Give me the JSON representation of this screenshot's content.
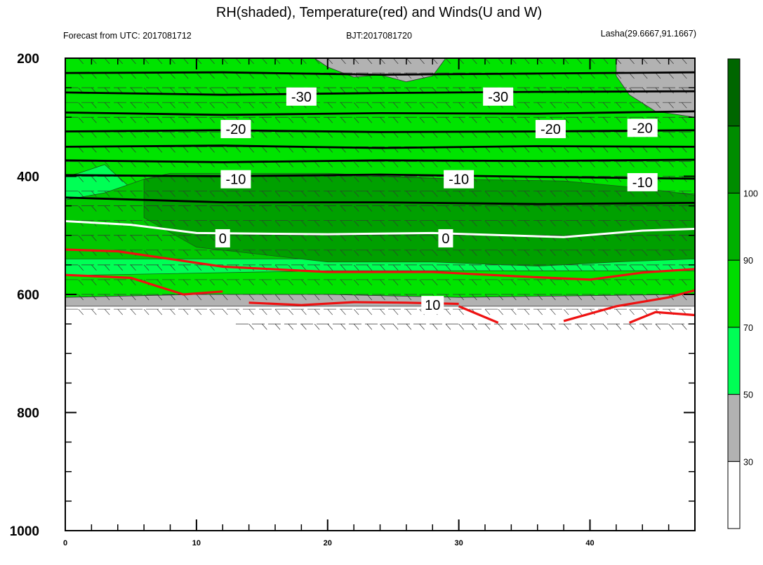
{
  "chart_data": {
    "type": "heatmap",
    "title": "RH(shaded), Temperature(red) and Winds(U and W)",
    "subtitle_left": "Forecast from UTC: 2017081712",
    "subtitle_center": "BJT:2017081720",
    "subtitle_right": "Lasha(29.6667,91.1667)",
    "xlim": [
      0,
      48
    ],
    "ylim": [
      1000,
      200
    ],
    "x_ticks": [
      "0",
      "10",
      "20",
      "30",
      "40"
    ],
    "y_ticks": [
      "200",
      "400",
      "600",
      "800",
      "1000"
    ],
    "colorbar": {
      "levels": [
        "30",
        "50",
        "70",
        "90",
        "100"
      ],
      "colors": [
        "#ffffff",
        "#b2b2b2",
        "#00ff55",
        "#00dd00",
        "#00b000",
        "#008c00",
        "#006600"
      ]
    },
    "rh_regions": [
      {
        "color": "#00e400",
        "top": [
          [
            0,
            200
          ],
          [
            48,
            200
          ]
        ],
        "bottom": [
          [
            0,
            612
          ],
          [
            5,
            612
          ],
          [
            20,
            612
          ],
          [
            35,
            615
          ],
          [
            48,
            612
          ]
        ]
      },
      {
        "color": "#00ff55",
        "top": [
          [
            0,
            400
          ],
          [
            1,
            395
          ],
          [
            3,
            380
          ],
          [
            5,
            420
          ],
          [
            7,
            470
          ],
          [
            10,
            510
          ],
          [
            48,
            510
          ]
        ],
        "bottom": [
          [
            0,
            568
          ],
          [
            20,
            560
          ],
          [
            48,
            560
          ]
        ]
      },
      {
        "color": "#00c800",
        "top": [
          [
            0,
            440
          ],
          [
            3,
            428
          ],
          [
            6,
            405
          ],
          [
            8,
            395
          ],
          [
            20,
            395
          ],
          [
            30,
            405
          ],
          [
            42,
            420
          ],
          [
            48,
            430
          ]
        ],
        "bottom": [
          [
            0,
            540
          ],
          [
            20,
            540
          ],
          [
            48,
            540
          ]
        ]
      },
      {
        "color": "#00a000",
        "top": [
          [
            6,
            405
          ],
          [
            8,
            398
          ],
          [
            20,
            397
          ],
          [
            30,
            405
          ],
          [
            38,
            408
          ],
          [
            44,
            420
          ],
          [
            48,
            432
          ]
        ],
        "bottom": [
          [
            6,
            470
          ],
          [
            10,
            520
          ],
          [
            20,
            545
          ],
          [
            28,
            545
          ],
          [
            36,
            552
          ],
          [
            42,
            545
          ],
          [
            48,
            540
          ]
        ]
      }
    ],
    "gray_regions": [
      {
        "points": [
          [
            19,
            200
          ],
          [
            29,
            200
          ],
          [
            28,
            230
          ],
          [
            26,
            240
          ],
          [
            24,
            228
          ],
          [
            22,
            232
          ],
          [
            20,
            215
          ]
        ]
      },
      {
        "points": [
          [
            42,
            200
          ],
          [
            48,
            200
          ],
          [
            48,
            300
          ],
          [
            45,
            290
          ],
          [
            43,
            262
          ],
          [
            42,
            230
          ]
        ]
      },
      {
        "points": [
          [
            0,
            605
          ],
          [
            10,
            600
          ],
          [
            20,
            600
          ],
          [
            30,
            605
          ],
          [
            40,
            602
          ],
          [
            48,
            600
          ],
          [
            48,
            620
          ],
          [
            0,
            620
          ]
        ]
      }
    ],
    "temperature_series": [
      {
        "name": "-30",
        "values": [
          [
            0,
            225
          ],
          [
            12,
            224
          ],
          [
            24,
            228
          ],
          [
            36,
            226
          ],
          [
            48,
            224
          ]
        ]
      },
      {
        "name": "-30",
        "values": [
          [
            0,
            258
          ],
          [
            12,
            262
          ],
          [
            24,
            259
          ],
          [
            36,
            257
          ],
          [
            48,
            256
          ]
        ]
      },
      {
        "name": "-20",
        "values": [
          [
            0,
            292
          ],
          [
            12,
            296
          ],
          [
            24,
            293
          ],
          [
            36,
            294
          ],
          [
            48,
            290
          ]
        ]
      },
      {
        "name": "-20",
        "values": [
          [
            0,
            324
          ],
          [
            12,
            322
          ],
          [
            24,
            325
          ],
          [
            36,
            324
          ],
          [
            48,
            322
          ]
        ]
      },
      {
        "name": "-20",
        "values": [
          [
            0,
            350
          ],
          [
            12,
            348
          ],
          [
            24,
            352
          ],
          [
            36,
            349
          ],
          [
            48,
            350
          ]
        ]
      },
      {
        "name": "-10",
        "values": [
          [
            0,
            373
          ],
          [
            12,
            376
          ],
          [
            24,
            373
          ],
          [
            36,
            374
          ],
          [
            48,
            372
          ]
        ]
      },
      {
        "name": "-10",
        "values": [
          [
            0,
            398
          ],
          [
            12,
            400
          ],
          [
            24,
            397
          ],
          [
            36,
            401
          ],
          [
            48,
            404
          ]
        ]
      },
      {
        "name": "-10",
        "values": [
          [
            0,
            436
          ],
          [
            12,
            444
          ],
          [
            24,
            444
          ],
          [
            36,
            447
          ],
          [
            48,
            445
          ]
        ]
      }
    ],
    "zero_isotherm": {
      "name": "0",
      "values": [
        [
          0,
          476
        ],
        [
          5,
          482
        ],
        [
          10,
          496
        ],
        [
          20,
          498
        ],
        [
          28,
          496
        ],
        [
          38,
          503
        ],
        [
          44,
          492
        ],
        [
          48,
          489
        ]
      ]
    },
    "red_isotherms": [
      {
        "name": "",
        "values": [
          [
            0,
            524
          ],
          [
            4,
            527
          ],
          [
            8,
            540
          ],
          [
            12,
            553
          ],
          [
            20,
            562
          ],
          [
            28,
            562
          ],
          [
            35,
            570
          ],
          [
            40,
            575
          ],
          [
            44,
            563
          ],
          [
            48,
            557
          ]
        ]
      },
      {
        "name": "",
        "values": [
          [
            0,
            567
          ],
          [
            5,
            572
          ],
          [
            9,
            600
          ],
          [
            12,
            595
          ]
        ]
      },
      {
        "name": "",
        "values": [
          [
            14,
            614
          ],
          [
            18,
            618
          ],
          [
            22,
            613
          ],
          [
            26,
            614
          ],
          [
            30,
            616
          ]
        ]
      },
      {
        "name": "10",
        "values": [
          [
            30,
            620
          ],
          [
            33,
            648
          ]
        ]
      },
      {
        "name": "",
        "values": [
          [
            38,
            645
          ],
          [
            42,
            620
          ],
          [
            46,
            605
          ],
          [
            48,
            593
          ]
        ]
      },
      {
        "name": "",
        "values": [
          [
            43,
            648
          ],
          [
            45,
            630
          ],
          [
            48,
            635
          ]
        ]
      }
    ],
    "contour_labels": [
      {
        "text": "-30",
        "x": 18,
        "y": 265
      },
      {
        "text": "-30",
        "x": 33,
        "y": 265
      },
      {
        "text": "-20",
        "x": 13,
        "y": 320
      },
      {
        "text": "-20",
        "x": 37,
        "y": 320
      },
      {
        "text": "-20",
        "x": 44,
        "y": 318
      },
      {
        "text": "-10",
        "x": 13,
        "y": 405
      },
      {
        "text": "-10",
        "x": 30,
        "y": 405
      },
      {
        "text": "-10",
        "x": 44,
        "y": 410
      },
      {
        "text": "0",
        "x": 12,
        "y": 505
      },
      {
        "text": "0",
        "x": 29,
        "y": 505
      },
      {
        "text": "10",
        "x": 28,
        "y": 618
      }
    ],
    "wind_rows": [
      200,
      225,
      250,
      275,
      300,
      325,
      350,
      375,
      400,
      425,
      450,
      475,
      500,
      525,
      550,
      575,
      600,
      625,
      650
    ],
    "wind_x_start": [
      0,
      0,
      0,
      0,
      0,
      0,
      0,
      0,
      0,
      0,
      0,
      0,
      0,
      0,
      0,
      0,
      0,
      0,
      13
    ]
  }
}
